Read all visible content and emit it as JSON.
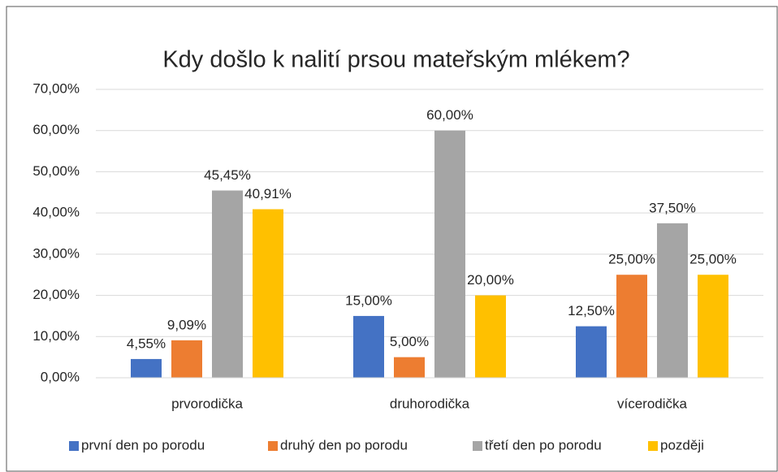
{
  "chart_data": {
    "type": "bar",
    "title": "Kdy došlo k nalití prsou mateřským mlékem?",
    "categories": [
      "prvorodička",
      "druhorodička",
      "vícerodička"
    ],
    "series": [
      {
        "name": "první den po porodu",
        "color": "#4472c4",
        "values": [
          4.55,
          15.0,
          12.5
        ],
        "value_labels": [
          "4,55%",
          "15,00%",
          "12,50%"
        ]
      },
      {
        "name": "druhý den po porodu",
        "color": "#ed7d31",
        "values": [
          9.09,
          5.0,
          25.0
        ],
        "value_labels": [
          "9,09%",
          "5,00%",
          "25,00%"
        ]
      },
      {
        "name": "třetí den po porodu",
        "color": "#a5a5a5",
        "values": [
          45.45,
          60.0,
          37.5
        ],
        "value_labels": [
          "45,45%",
          "60,00%",
          "37,50%"
        ]
      },
      {
        "name": "později",
        "color": "#ffc000",
        "values": [
          40.91,
          20.0,
          25.0
        ],
        "value_labels": [
          "40,91%",
          "20,00%",
          "25,00%"
        ]
      }
    ],
    "ylim": [
      0,
      70
    ],
    "yticks": [
      {
        "value": 0,
        "label": "0,00%"
      },
      {
        "value": 10,
        "label": "10,00%"
      },
      {
        "value": 20,
        "label": "20,00%"
      },
      {
        "value": 30,
        "label": "30,00%"
      },
      {
        "value": 40,
        "label": "40,00%"
      },
      {
        "value": 50,
        "label": "50,00%"
      },
      {
        "value": 60,
        "label": "60,00%"
      },
      {
        "value": 70,
        "label": "70,00%"
      }
    ],
    "grid": true,
    "legend": "bottom"
  }
}
